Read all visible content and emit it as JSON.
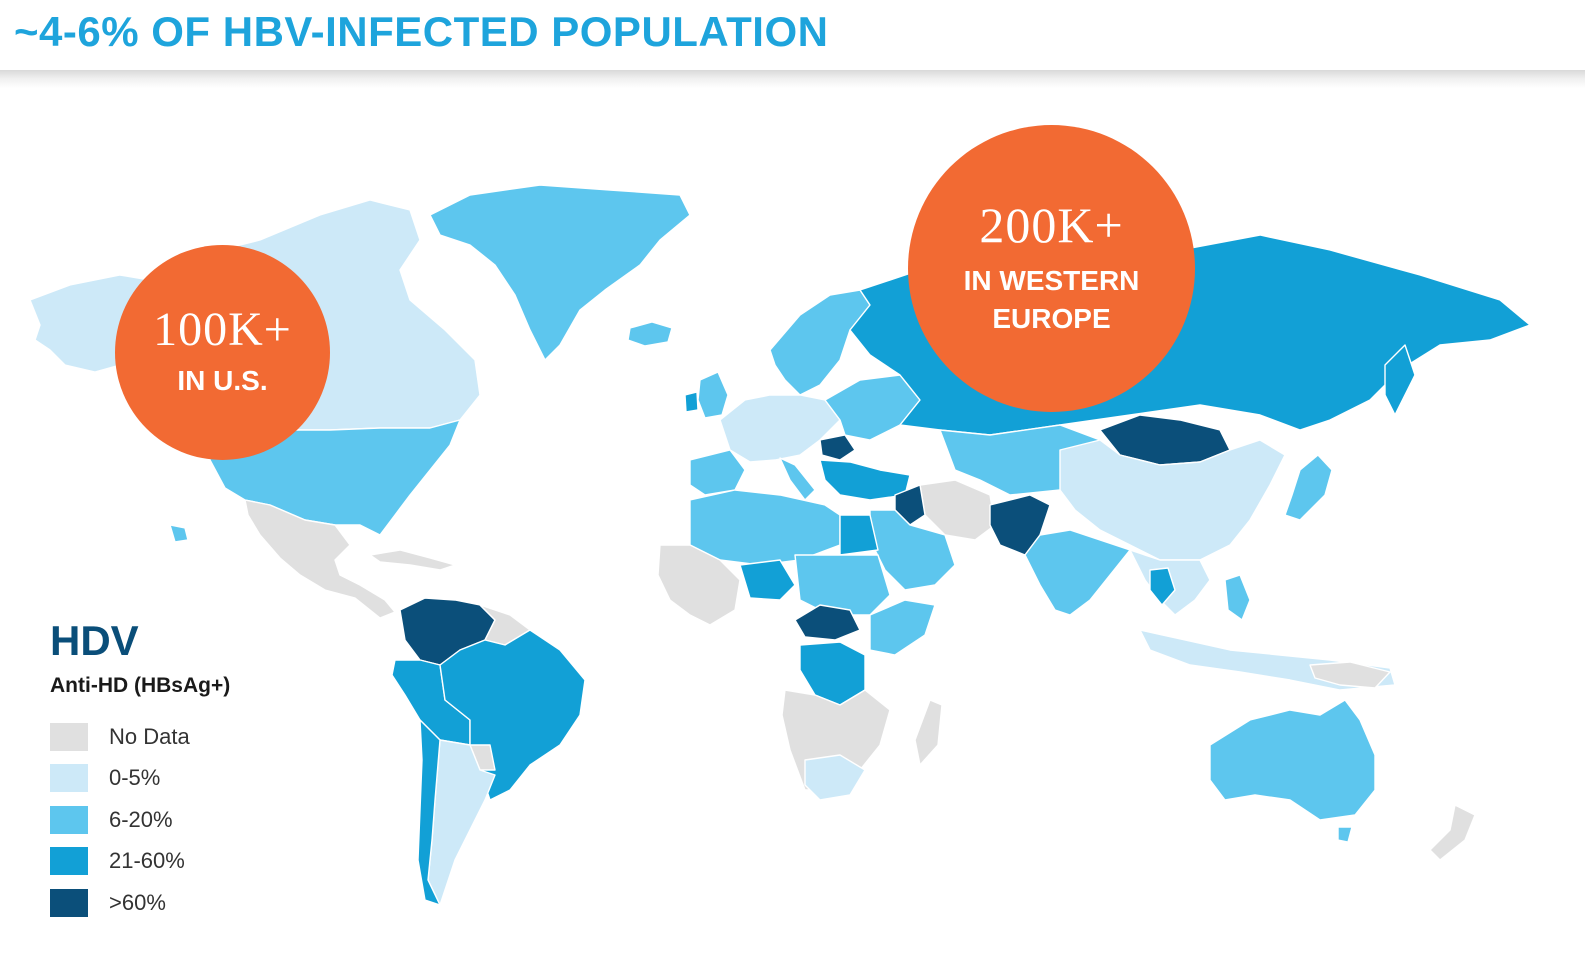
{
  "title": "~4-6% OF HBV-INFECTED POPULATION",
  "colors": {
    "no_data": "#e0e0e0",
    "low": "#cde9f8",
    "mid": "#5dc6ee",
    "high": "#12a0d6",
    "very_high": "#0b4f7a",
    "bubble": "#f26a33",
    "title": "#1ea4dc"
  },
  "callouts": [
    {
      "value": "100K+",
      "label": "IN U.S."
    },
    {
      "value": "200K+",
      "label_line1": "IN WESTERN",
      "label_line2": "EUROPE"
    }
  ],
  "legend": {
    "title": "HDV",
    "subtitle": "Anti-HD (HBsAg+)",
    "items": [
      {
        "label": "No Data",
        "color": "#e0e0e0"
      },
      {
        "label": "0-5%",
        "color": "#cde9f8"
      },
      {
        "label": "6-20%",
        "color": "#5dc6ee"
      },
      {
        "label": "21-60%",
        "color": "#12a0d6"
      },
      {
        "label": ">60%",
        "color": "#0b4f7a"
      }
    ]
  }
}
